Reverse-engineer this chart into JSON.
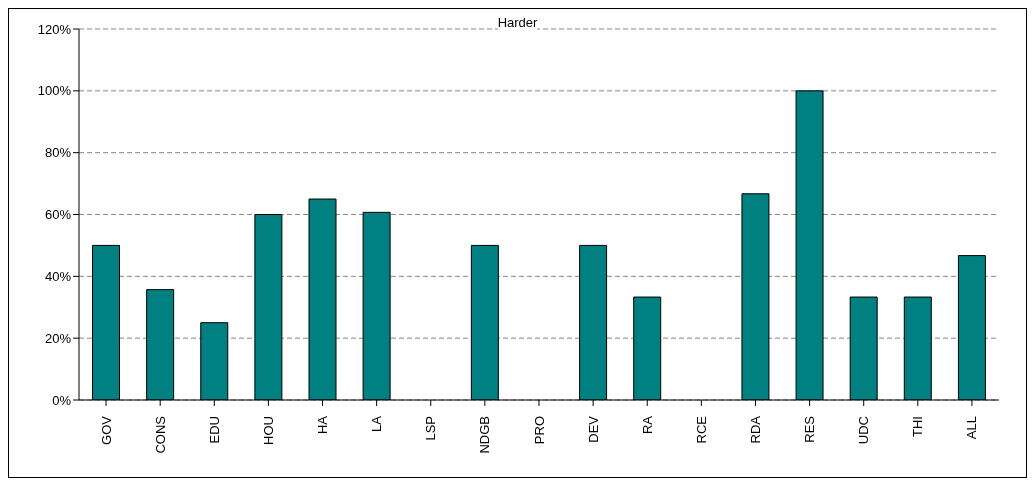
{
  "chart_data": {
    "type": "bar",
    "title": "Harder",
    "categories": [
      "GOV",
      "CONS",
      "EDU",
      "HOU",
      "HA",
      "LA",
      "LSP",
      "NDGB",
      "PRO",
      "DEV",
      "RA",
      "RCE",
      "RDA",
      "RES",
      "UDC",
      "THI",
      "ALL"
    ],
    "values": [
      50,
      35.7,
      25,
      60,
      65,
      60.7,
      0,
      50,
      0,
      50,
      33.3,
      0,
      66.7,
      100,
      33.3,
      33.3,
      46.7
    ],
    "color": "#008080",
    "ylim": [
      0,
      120
    ],
    "yticks": [
      {
        "value": 0,
        "label": "0%"
      },
      {
        "value": 20,
        "label": "20%"
      },
      {
        "value": 40,
        "label": "40%"
      },
      {
        "value": 60,
        "label": "60%"
      },
      {
        "value": 80,
        "label": "80%"
      },
      {
        "value": 100,
        "label": "100%"
      },
      {
        "value": 120,
        "label": "120%"
      }
    ],
    "grid": "y"
  }
}
